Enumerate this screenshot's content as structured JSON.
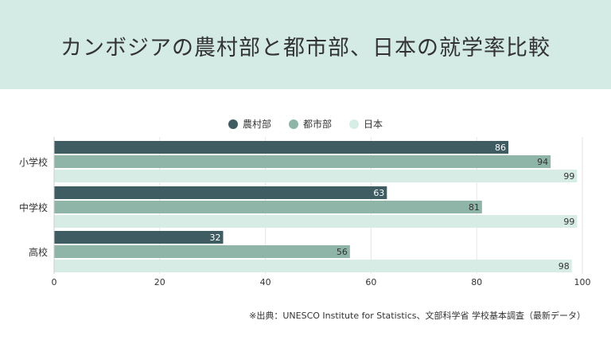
{
  "title": "カンボジアの農村部と都市部、日本の就学率比較",
  "source": "※出典：UNESCO Institute for Statistics、文部科学省 学校基本調査（最新データ）",
  "colors": {
    "header_bg": "#d4ebe5",
    "rural": "#3f5c63",
    "urban": "#8fb5a9",
    "japan": "#d8ece6"
  },
  "chart_data": {
    "type": "bar",
    "orientation": "horizontal",
    "categories": [
      "小学校",
      "中学校",
      "高校"
    ],
    "series": [
      {
        "name": "農村部",
        "values": [
          86,
          63,
          32
        ],
        "color": "#3f5c63"
      },
      {
        "name": "都市部",
        "values": [
          94,
          81,
          56
        ],
        "color": "#8fb5a9"
      },
      {
        "name": "日本",
        "values": [
          99,
          99,
          98
        ],
        "color": "#d8ece6"
      }
    ],
    "xlim": [
      0,
      100
    ],
    "xticks": [
      0,
      20,
      40,
      60,
      80,
      100
    ],
    "grid": true,
    "legend_position": "top-center"
  }
}
